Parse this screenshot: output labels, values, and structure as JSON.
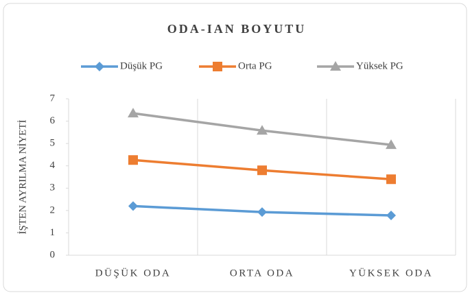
{
  "chart_data": {
    "type": "line",
    "title": "ODA-IAN BOYUTU",
    "y_label": "İŞTEN AYRILMA NİYETİ",
    "categories": [
      "DÜŞÜK ODA",
      "ORTA ODA",
      "YÜKSEK ODA"
    ],
    "series": [
      {
        "name": "Düşük PG",
        "color": "#5b9bd5",
        "marker": "diamond",
        "values": [
          2.2,
          1.93,
          1.78
        ]
      },
      {
        "name": "Orta PG",
        "color": "#ed7d31",
        "marker": "square",
        "values": [
          4.26,
          3.8,
          3.4
        ]
      },
      {
        "name": "Yüksek PG",
        "color": "#a5a5a5",
        "marker": "triangle",
        "values": [
          6.35,
          5.58,
          4.94
        ]
      }
    ],
    "ylim": [
      0,
      7
    ],
    "yticks": [
      0,
      1,
      2,
      3,
      4,
      5,
      6,
      7
    ],
    "legend": "top"
  }
}
